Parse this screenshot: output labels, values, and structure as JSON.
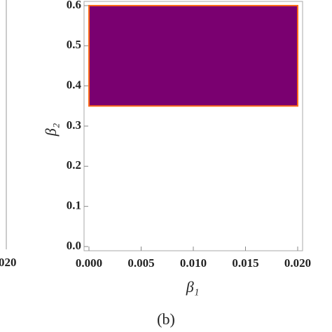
{
  "chart_data": {
    "type": "region",
    "xlabel": "β₁",
    "ylabel": "β₂",
    "caption": "(b)",
    "xlim": [
      0,
      0.02
    ],
    "ylim": [
      0,
      0.6
    ],
    "xticks": [
      {
        "value": 0,
        "label": "0.000"
      },
      {
        "value": 0.005,
        "label": "0.005"
      },
      {
        "value": 0.01,
        "label": "0.010"
      },
      {
        "value": 0.015,
        "label": "0.015"
      },
      {
        "value": 0.02,
        "label": "0.020"
      }
    ],
    "yticks": [
      {
        "value": 0,
        "label": "0.0"
      },
      0.1,
      0.2,
      0.3,
      0.4,
      0.5,
      0.6
    ],
    "regions": [
      {
        "x": [
          0,
          0.02
        ],
        "y": [
          0.35,
          0.6
        ],
        "color": "#7a0070",
        "edge_color": "#ff6a1a"
      }
    ]
  },
  "neighbor_panel": {
    "tick_label_fragment": "020"
  }
}
